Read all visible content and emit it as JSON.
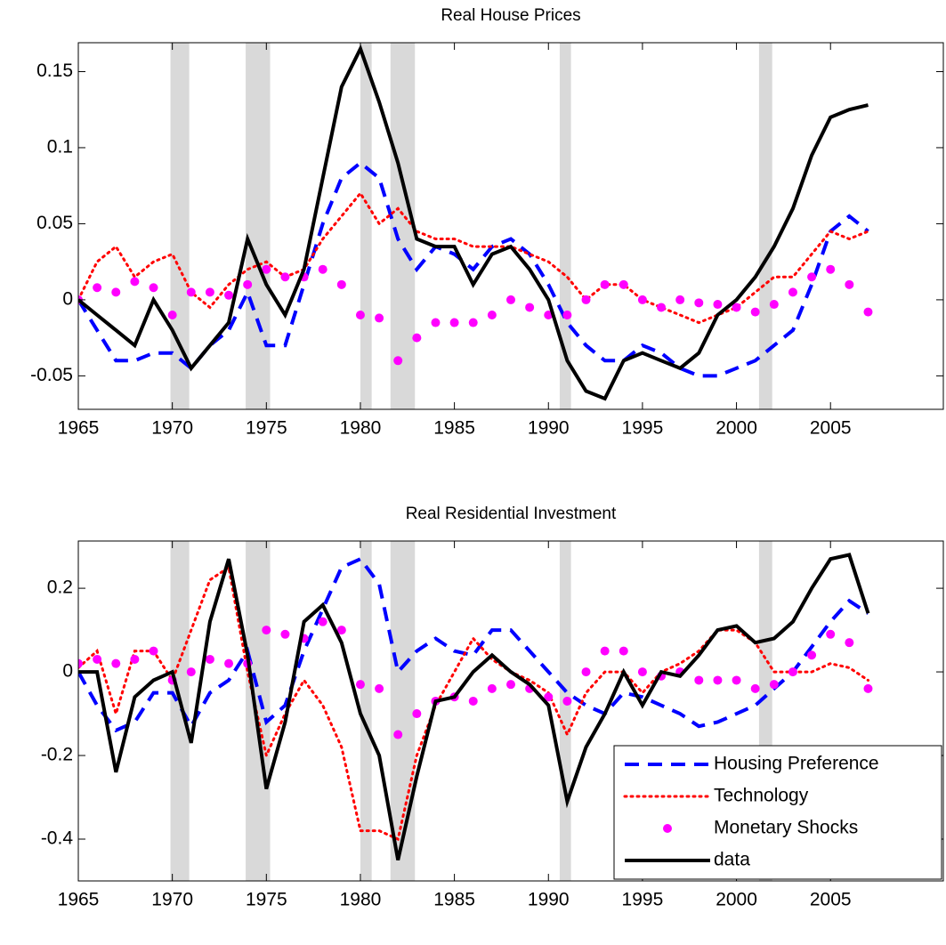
{
  "chart_data": [
    {
      "type": "line",
      "title": "Real House Prices",
      "x": [
        1965,
        1966,
        1967,
        1968,
        1969,
        1970,
        1971,
        1972,
        1973,
        1974,
        1975,
        1976,
        1977,
        1978,
        1979,
        1980,
        1981,
        1982,
        1983,
        1984,
        1985,
        1986,
        1987,
        1988,
        1989,
        1990,
        1991,
        1992,
        1993,
        1994,
        1995,
        1996,
        1997,
        1998,
        1999,
        2000,
        2001,
        2002,
        2003,
        2004,
        2005,
        2006,
        2007
      ],
      "series": [
        {
          "color": "#0000ff",
          "style": "dashed",
          "values": [
            0,
            -0.02,
            -0.04,
            -0.04,
            -0.035,
            -0.035,
            -0.045,
            -0.03,
            -0.02,
            0.005,
            -0.03,
            -0.03,
            0.01,
            0.05,
            0.08,
            0.09,
            0.08,
            0.04,
            0.02,
            0.035,
            0.03,
            0.02,
            0.035,
            0.04,
            0.03,
            0.01,
            -0.015,
            -0.03,
            -0.04,
            -0.04,
            -0.03,
            -0.035,
            -0.045,
            -0.05,
            -0.05,
            -0.045,
            -0.04,
            -0.03,
            -0.02,
            0.01,
            0.045,
            0.055,
            0.045
          ]
        },
        {
          "color": "#ff0000",
          "style": "dotted",
          "values": [
            0,
            0.025,
            0.035,
            0.015,
            0.025,
            0.03,
            0.005,
            -0.005,
            0.01,
            0.02,
            0.025,
            0.015,
            0.02,
            0.04,
            0.055,
            0.07,
            0.05,
            0.06,
            0.045,
            0.04,
            0.04,
            0.035,
            0.035,
            0.035,
            0.03,
            0.025,
            0.015,
            0,
            0.01,
            0.01,
            0,
            -0.005,
            -0.01,
            -0.015,
            -0.01,
            -0.005,
            0.005,
            0.015,
            0.015,
            0.03,
            0.045,
            0.04,
            0.045
          ]
        },
        {
          "color": "#ff00ff",
          "style": "markers",
          "values": [
            0,
            0.008,
            0.005,
            0.012,
            0.008,
            -0.01,
            0.005,
            0.005,
            0.003,
            0.01,
            0.02,
            0.015,
            0.015,
            0.02,
            0.01,
            -0.01,
            -0.012,
            -0.04,
            -0.025,
            -0.015,
            -0.015,
            -0.015,
            -0.01,
            0,
            -0.005,
            -0.01,
            -0.01,
            0,
            0.01,
            0.01,
            0,
            -0.005,
            0,
            -0.002,
            -0.003,
            -0.005,
            -0.008,
            -0.003,
            0.005,
            0.015,
            0.02,
            0.01,
            -0.008
          ]
        },
        {
          "color": "#000000",
          "style": "solid",
          "values": [
            0,
            -0.01,
            -0.02,
            -0.03,
            0,
            -0.02,
            -0.045,
            -0.03,
            -0.015,
            0.04,
            0.01,
            -0.01,
            0.02,
            0.08,
            0.14,
            0.165,
            0.13,
            0.09,
            0.04,
            0.035,
            0.035,
            0.01,
            0.03,
            0.035,
            0.02,
            0,
            -0.04,
            -0.06,
            -0.065,
            -0.04,
            -0.035,
            -0.04,
            -0.045,
            -0.035,
            -0.01,
            0,
            0.015,
            0.035,
            0.06,
            0.095,
            0.12,
            0.125,
            0.128
          ]
        }
      ],
      "recessions": [
        [
          1969.9,
          1970.9
        ],
        [
          1973.9,
          1975.2
        ],
        [
          1980.0,
          1980.6
        ],
        [
          1981.6,
          1982.9
        ],
        [
          1990.6,
          1991.2
        ],
        [
          2001.2,
          2001.9
        ]
      ],
      "xlim": [
        1965,
        2011
      ],
      "xticks": [
        1965,
        1970,
        1975,
        1980,
        1985,
        1990,
        1995,
        2000,
        2005
      ],
      "ylim": [
        -0.072,
        0.169
      ],
      "yticks": [
        -0.05,
        0,
        0.05,
        0.1,
        0.15
      ]
    },
    {
      "type": "line",
      "title": "Real Residential Investment",
      "x": [
        1965,
        1966,
        1967,
        1968,
        1969,
        1970,
        1971,
        1972,
        1973,
        1974,
        1975,
        1976,
        1977,
        1978,
        1979,
        1980,
        1981,
        1982,
        1983,
        1984,
        1985,
        1986,
        1987,
        1988,
        1989,
        1990,
        1991,
        1992,
        1993,
        1994,
        1995,
        1996,
        1997,
        1998,
        1999,
        2000,
        2001,
        2002,
        2003,
        2004,
        2005,
        2006,
        2007
      ],
      "series": [
        {
          "name": "Housing Preference",
          "color": "#0000ff",
          "style": "dashed",
          "values": [
            0,
            -0.08,
            -0.14,
            -0.12,
            -0.05,
            -0.05,
            -0.13,
            -0.05,
            -0.02,
            0.05,
            -0.12,
            -0.08,
            0.05,
            0.15,
            0.25,
            0.27,
            0.21,
            0,
            0.05,
            0.08,
            0.05,
            0.04,
            0.1,
            0.1,
            0.05,
            0,
            -0.05,
            -0.08,
            -0.1,
            -0.05,
            -0.06,
            -0.08,
            -0.1,
            -0.13,
            -0.12,
            -0.1,
            -0.08,
            -0.04,
            0,
            0.06,
            0.12,
            0.17,
            0.14
          ]
        },
        {
          "name": "Technology",
          "color": "#ff0000",
          "style": "dotted",
          "values": [
            0.01,
            0.05,
            -0.1,
            0.05,
            0.05,
            -0.02,
            0.1,
            0.22,
            0.25,
            0,
            -0.2,
            -0.1,
            -0.02,
            -0.08,
            -0.18,
            -0.38,
            -0.38,
            -0.4,
            -0.2,
            -0.08,
            0,
            0.08,
            0.03,
            0,
            -0.02,
            -0.05,
            -0.15,
            -0.05,
            0,
            0,
            -0.05,
            0,
            0.02,
            0.05,
            0.1,
            0.1,
            0.07,
            0,
            0,
            0,
            0.02,
            0.01,
            -0.02
          ]
        },
        {
          "name": "Monetary Shocks",
          "color": "#ff00ff",
          "style": "markers",
          "values": [
            0.02,
            0.03,
            0.02,
            0.03,
            0.05,
            -0.02,
            0,
            0.03,
            0.02,
            0.02,
            0.1,
            0.09,
            0.08,
            0.12,
            0.1,
            -0.03,
            -0.04,
            -0.15,
            -0.1,
            -0.07,
            -0.06,
            -0.07,
            -0.04,
            -0.03,
            -0.04,
            -0.06,
            -0.07,
            0,
            0.05,
            0.05,
            0,
            -0.01,
            0,
            -0.02,
            -0.02,
            -0.02,
            -0.04,
            -0.03,
            0,
            0.04,
            0.09,
            0.07,
            -0.04
          ]
        },
        {
          "name": "data",
          "color": "#000000",
          "style": "solid",
          "values": [
            0,
            0,
            -0.24,
            -0.06,
            -0.02,
            0,
            -0.17,
            0.12,
            0.27,
            0.04,
            -0.28,
            -0.12,
            0.12,
            0.16,
            0.07,
            -0.1,
            -0.2,
            -0.45,
            -0.25,
            -0.07,
            -0.06,
            0,
            0.04,
            0,
            -0.03,
            -0.08,
            -0.31,
            -0.18,
            -0.1,
            0,
            -0.08,
            0,
            -0.01,
            0.04,
            0.1,
            0.11,
            0.07,
            0.08,
            0.12,
            0.2,
            0.27,
            0.28,
            0.14
          ]
        }
      ],
      "recessions": [
        [
          1969.9,
          1970.9
        ],
        [
          1973.9,
          1975.2
        ],
        [
          1980.0,
          1980.6
        ],
        [
          1981.6,
          1982.9
        ],
        [
          1990.6,
          1991.2
        ],
        [
          2001.2,
          2001.9
        ]
      ],
      "xlim": [
        1965,
        2011
      ],
      "xticks": [
        1965,
        1970,
        1975,
        1980,
        1985,
        1990,
        1995,
        2000,
        2005
      ],
      "ylim": [
        -0.5,
        0.313
      ],
      "yticks": [
        -0.4,
        -0.2,
        0,
        0.2
      ],
      "legend": "lower right"
    }
  ]
}
